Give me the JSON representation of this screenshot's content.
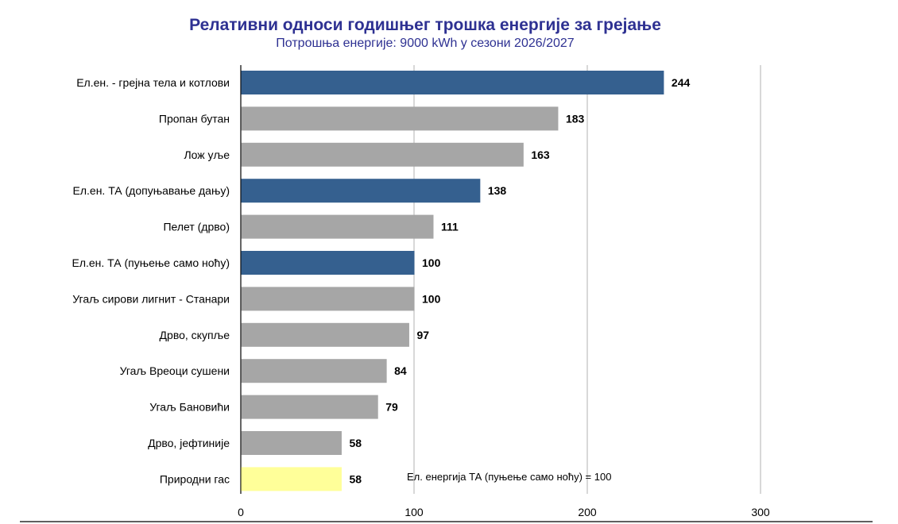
{
  "chart_data": {
    "type": "bar",
    "orientation": "horizontal",
    "title": "Релативни односи годишњег трошка енергије за грејање",
    "subtitle": "Потрошња енергије: 9000 kWh у сезони 2026/2027",
    "categories": [
      "Ел.ен. - грејна тела и котлови",
      "Пропан бутан",
      "Лож уље",
      "Ел.ен. ТА (допуњавање дању)",
      "Пелет (дрво)",
      "Ел.ен. ТА (пуњење само ноћу)",
      "Угаљ сирови лигнит - Станари",
      "Дрво, скупље",
      "Угаљ Вреоци сушени",
      "Угаљ Бановићи",
      "Дрво, јефтиније",
      "Природни гас"
    ],
    "values": [
      244,
      183,
      163,
      138,
      111,
      100,
      100,
      97,
      84,
      79,
      58,
      58
    ],
    "bar_colors": [
      "#35608F",
      "#A6A6A6",
      "#A6A6A6",
      "#35608F",
      "#A6A6A6",
      "#35608F",
      "#A6A6A6",
      "#A6A6A6",
      "#A6A6A6",
      "#A6A6A6",
      "#A6A6A6",
      "#FFFF99"
    ],
    "xlim": [
      0,
      300
    ],
    "xticks": [
      0,
      100,
      200,
      300
    ],
    "grid": "vertical",
    "annotation": "Ел. енергија ТА (пуњење само ноћу) = 100",
    "xlabel": "",
    "ylabel": ""
  }
}
